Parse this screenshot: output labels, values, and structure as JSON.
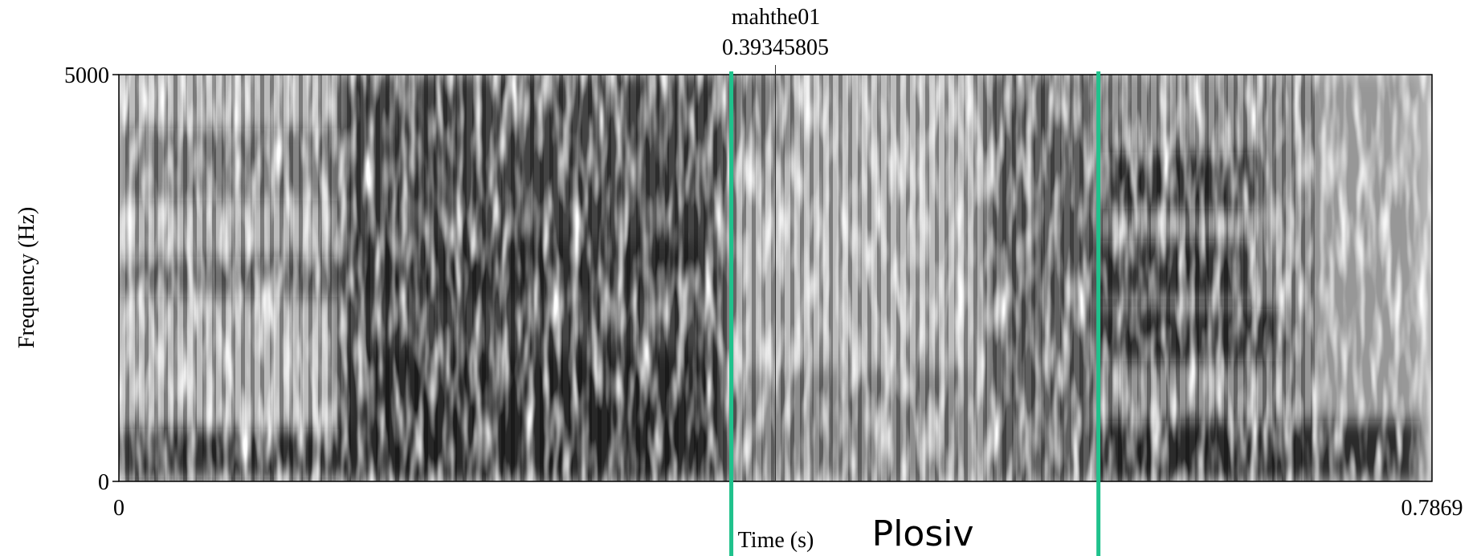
{
  "chart_data": {
    "type": "spectrogram",
    "title": "mahthe01",
    "cursor": 0.39345805,
    "xlabel": "Time (s)",
    "ylabel": "Frequency (Hz)",
    "xlim": [
      0,
      0.7869
    ],
    "xticks": [
      0,
      0.7869
    ],
    "ylim": [
      0,
      5000
    ],
    "yticks": [
      0,
      5000
    ],
    "boundaries": [
      0.367,
      0.587
    ],
    "boundary_color": "#1fc28c",
    "annotation": "Plosiv"
  }
}
